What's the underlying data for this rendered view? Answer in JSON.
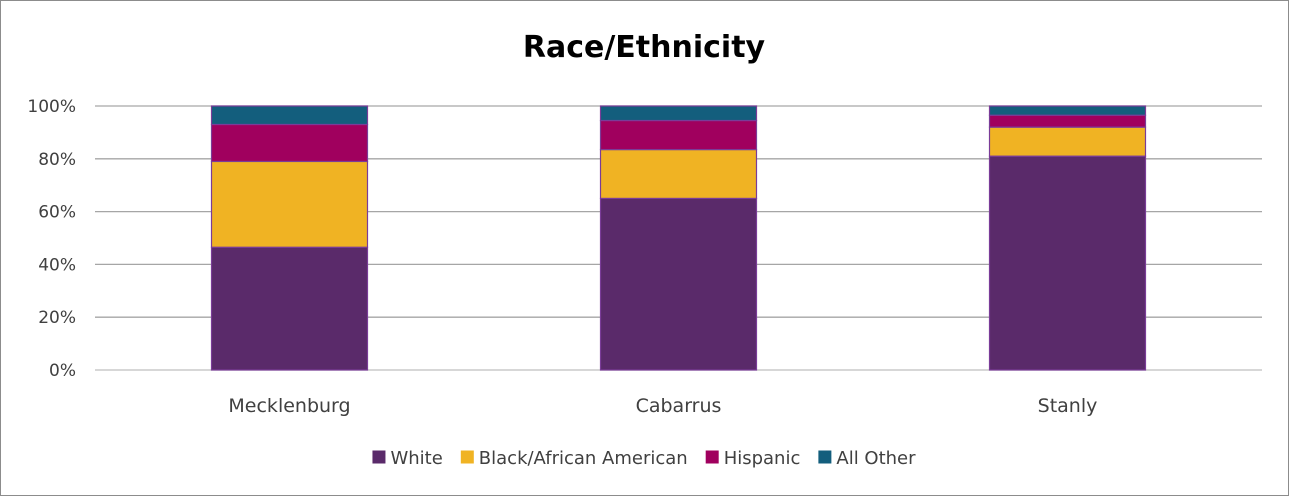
{
  "chart_data": {
    "type": "bar",
    "stacked": true,
    "title": "Race/Ethnicity",
    "xlabel": "",
    "ylabel": "",
    "ylim": [
      0,
      100
    ],
    "yticks": [
      "0%",
      "20%",
      "40%",
      "60%",
      "80%",
      "100%"
    ],
    "grid": true,
    "legend": "bottom",
    "categories": [
      "Mecklenburg",
      "Cabarrus",
      "Stanly"
    ],
    "series": [
      {
        "name": "White",
        "color": "#5a2a6a",
        "values": [
          46.5,
          65,
          81
        ]
      },
      {
        "name": "Black/African American",
        "color": "#f0b323",
        "values": [
          32.5,
          18.5,
          11
        ]
      },
      {
        "name": "Hispanic",
        "color": "#a0005e",
        "values": [
          14,
          11,
          4.5
        ]
      },
      {
        "name": "All Other",
        "color": "#135e7d",
        "values": [
          7,
          5.5,
          3.5
        ]
      }
    ]
  }
}
